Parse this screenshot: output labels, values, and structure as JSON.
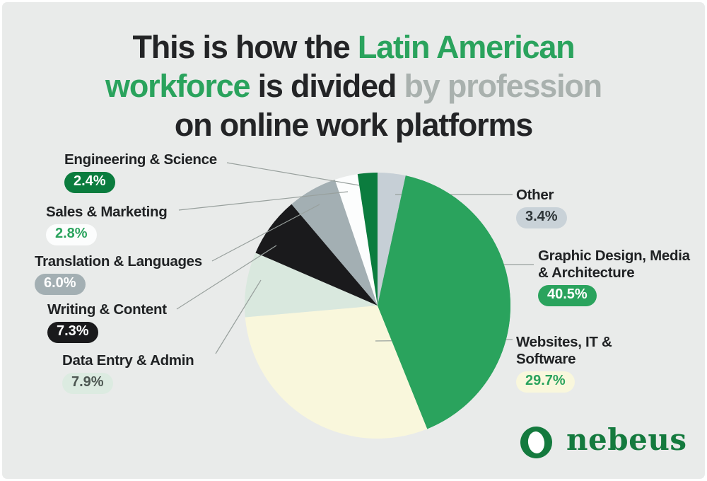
{
  "title": {
    "line1_a": "This is how the ",
    "line1_b": "Latin American",
    "line2_a": "workforce",
    "line2_b": " is divided ",
    "line2_c": "by profession",
    "line3": "on online work platforms"
  },
  "colors": {
    "background": "#e9ebea",
    "title_dark": "#232426",
    "title_green": "#2aa35d",
    "title_gray": "#a9b1ae",
    "label_text": "#202224",
    "leader_line": "#98a09d",
    "logo_green": "#147a3e"
  },
  "chart_data": {
    "type": "pie",
    "title": "Latin American workforce divided by profession on online work platforms",
    "start_angle_deg": 0,
    "direction": "clockwise",
    "legend_position": "around",
    "segments": [
      {
        "key": "other",
        "label": "Other",
        "value": 3.4,
        "pct_label": "3.4%",
        "color": "#c6cfd6",
        "badge_bg": "#c9d2d8",
        "badge_text": "#2e3538"
      },
      {
        "key": "graphic-design",
        "label": "Graphic Design, Media & Architecture",
        "value": 40.5,
        "pct_label": "40.5%",
        "color": "#2aa35d",
        "badge_bg": "#2aa35d",
        "badge_text": "#ffffff"
      },
      {
        "key": "websites-it",
        "label": "Websites, IT & Software",
        "value": 29.7,
        "pct_label": "29.7%",
        "color": "#f9f7dc",
        "badge_bg": "#f9f7dc",
        "badge_text": "#2aa35d"
      },
      {
        "key": "data-entry",
        "label": "Data Entry & Admin",
        "value": 7.9,
        "pct_label": "7.9%",
        "color": "#d9e8de",
        "badge_bg": "#dcebe1",
        "badge_text": "#4d5752"
      },
      {
        "key": "writing",
        "label": "Writing & Content",
        "value": 7.3,
        "pct_label": "7.3%",
        "color": "#1a1a1c",
        "badge_bg": "#1a1a1c",
        "badge_text": "#ffffff"
      },
      {
        "key": "translation",
        "label": "Translation & Languages",
        "value": 6.0,
        "pct_label": "6.0%",
        "color": "#a3afb3",
        "badge_bg": "#a3afb3",
        "badge_text": "#ffffff"
      },
      {
        "key": "sales",
        "label": "Sales & Marketing",
        "value": 2.8,
        "pct_label": "2.8%",
        "color": "#fcfdfd",
        "badge_bg": "#fcfdfd",
        "badge_text": "#2aa35d"
      },
      {
        "key": "engineering",
        "label": "Engineering & Science",
        "value": 2.4,
        "pct_label": "2.4%",
        "color": "#0b7c3e",
        "badge_bg": "#0b7c3e",
        "badge_text": "#ffffff"
      }
    ]
  },
  "logo": {
    "brand": "nebeus"
  }
}
